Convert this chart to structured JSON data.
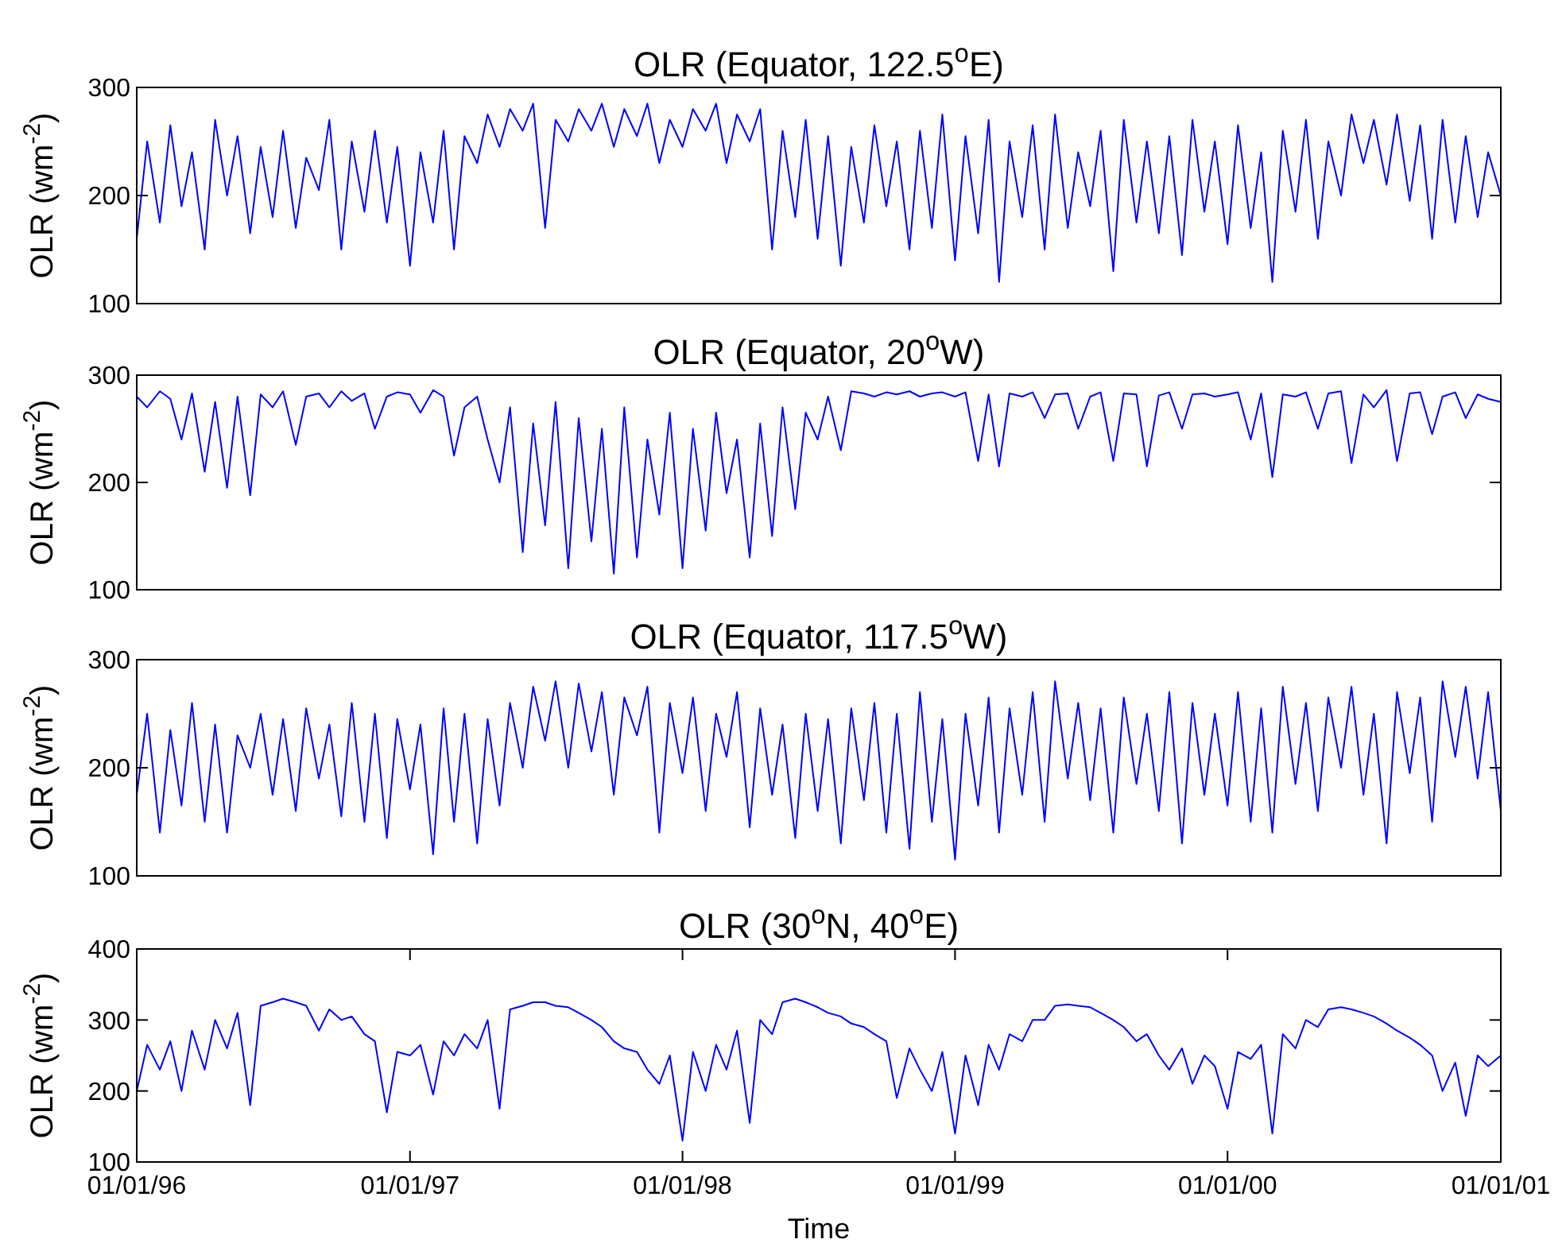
{
  "chart_data": [
    {
      "type": "line",
      "x": [
        "1996-01-01",
        "1996-01-15",
        "1996-02-01",
        "1996-02-15",
        "1996-03-01",
        "1996-03-15",
        "1996-04-01",
        "1996-04-15",
        "1996-05-01",
        "1996-05-15",
        "1996-06-01",
        "1996-06-15",
        "1996-07-01",
        "1996-07-15",
        "1996-08-01",
        "1996-08-15",
        "1996-09-01",
        "1996-09-15",
        "1996-10-01",
        "1996-10-15",
        "1996-11-01",
        "1996-11-15",
        "1996-12-01",
        "1996-12-15",
        "1997-01-01",
        "1997-01-15",
        "1997-02-01",
        "1997-02-15",
        "1997-03-01",
        "1997-03-15",
        "1997-04-01",
        "1997-04-15",
        "1997-05-01",
        "1997-05-15",
        "1997-06-01",
        "1997-06-15",
        "1997-07-01",
        "1997-07-15",
        "1997-08-01",
        "1997-08-15",
        "1997-09-01",
        "1997-09-15",
        "1997-10-01",
        "1997-10-15",
        "1997-11-01",
        "1997-11-15",
        "1997-12-01",
        "1997-12-15",
        "1998-01-01",
        "1998-01-15",
        "1998-02-01",
        "1998-02-15",
        "1998-03-01",
        "1998-03-15",
        "1998-04-01",
        "1998-04-15",
        "1998-05-01",
        "1998-05-15",
        "1998-06-01",
        "1998-06-15",
        "1998-07-01",
        "1998-07-15",
        "1998-08-01",
        "1998-08-15",
        "1998-09-01",
        "1998-09-15",
        "1998-10-01",
        "1998-10-15",
        "1998-11-01",
        "1998-11-15",
        "1998-12-01",
        "1998-12-15",
        "1999-01-01",
        "1999-01-15",
        "1999-02-01",
        "1999-02-15",
        "1999-03-01",
        "1999-03-15",
        "1999-04-01",
        "1999-04-15",
        "1999-05-01",
        "1999-05-15",
        "1999-06-01",
        "1999-06-15",
        "1999-07-01",
        "1999-07-15",
        "1999-08-01",
        "1999-08-15",
        "1999-09-01",
        "1999-09-15",
        "1999-10-01",
        "1999-10-15",
        "1999-11-01",
        "1999-11-15",
        "1999-12-01",
        "1999-12-15",
        "2000-01-01",
        "2000-01-15",
        "2000-02-01",
        "2000-02-15",
        "2000-03-01",
        "2000-03-15",
        "2000-04-01",
        "2000-04-15",
        "2000-05-01",
        "2000-05-15",
        "2000-06-01",
        "2000-06-15",
        "2000-07-01",
        "2000-07-15",
        "2000-08-01",
        "2000-08-15",
        "2000-09-01",
        "2000-09-15",
        "2000-10-01",
        "2000-10-15",
        "2000-11-01",
        "2000-11-15",
        "2000-12-01",
        "2000-12-15",
        "2001-01-01"
      ],
      "title": "OLR (Equator, 122.5$^{o}$E)",
      "ylabel": "OLR (wm$^{-2}$)",
      "xlim": [
        "1996-01-01",
        "2001-01-01"
      ],
      "ylim": [
        100,
        300
      ],
      "yticks": [
        100,
        200,
        300
      ],
      "tick_labels": "y",
      "series": [
        {
          "color": "#0000ff",
          "values": [
            160,
            250,
            175,
            265,
            190,
            240,
            150,
            270,
            200,
            255,
            165,
            245,
            180,
            260,
            170,
            235,
            205,
            270,
            150,
            250,
            185,
            260,
            175,
            245,
            135,
            240,
            175,
            260,
            150,
            255,
            230,
            275,
            245,
            280,
            260,
            285,
            170,
            270,
            250,
            280,
            260,
            285,
            245,
            280,
            255,
            285,
            230,
            270,
            245,
            280,
            260,
            285,
            230,
            275,
            250,
            280,
            150,
            260,
            180,
            270,
            160,
            255,
            135,
            245,
            175,
            265,
            190,
            250,
            150,
            260,
            170,
            275,
            140,
            255,
            165,
            270,
            120,
            250,
            180,
            265,
            150,
            275,
            170,
            240,
            190,
            260,
            130,
            270,
            175,
            250,
            165,
            255,
            145,
            270,
            185,
            250,
            155,
            265,
            170,
            240,
            120,
            260,
            185,
            270,
            160,
            250,
            200,
            275,
            230,
            270,
            210,
            275,
            195,
            265,
            160,
            270,
            175,
            255,
            180,
            240,
            200
          ]
        }
      ]
    },
    {
      "type": "line",
      "x": [
        "1996-01-01",
        "1996-01-15",
        "1996-02-01",
        "1996-02-15",
        "1996-03-01",
        "1996-03-15",
        "1996-04-01",
        "1996-04-15",
        "1996-05-01",
        "1996-05-15",
        "1996-06-01",
        "1996-06-15",
        "1996-07-01",
        "1996-07-15",
        "1996-08-01",
        "1996-08-15",
        "1996-09-01",
        "1996-09-15",
        "1996-10-01",
        "1996-10-15",
        "1996-11-01",
        "1996-11-15",
        "1996-12-01",
        "1996-12-15",
        "1997-01-01",
        "1997-01-15",
        "1997-02-01",
        "1997-02-15",
        "1997-03-01",
        "1997-03-15",
        "1997-04-01",
        "1997-04-15",
        "1997-05-01",
        "1997-05-15",
        "1997-06-01",
        "1997-06-15",
        "1997-07-01",
        "1997-07-15",
        "1997-08-01",
        "1997-08-15",
        "1997-09-01",
        "1997-09-15",
        "1997-10-01",
        "1997-10-15",
        "1997-11-01",
        "1997-11-15",
        "1997-12-01",
        "1997-12-15",
        "1998-01-01",
        "1998-01-15",
        "1998-02-01",
        "1998-02-15",
        "1998-03-01",
        "1998-03-15",
        "1998-04-01",
        "1998-04-15",
        "1998-05-01",
        "1998-05-15",
        "1998-06-01",
        "1998-06-15",
        "1998-07-01",
        "1998-07-15",
        "1998-08-01",
        "1998-08-15",
        "1998-09-01",
        "1998-09-15",
        "1998-10-01",
        "1998-10-15",
        "1998-11-01",
        "1998-11-15",
        "1998-12-01",
        "1998-12-15",
        "1999-01-01",
        "1999-01-15",
        "1999-02-01",
        "1999-02-15",
        "1999-03-01",
        "1999-03-15",
        "1999-04-01",
        "1999-04-15",
        "1999-05-01",
        "1999-05-15",
        "1999-06-01",
        "1999-06-15",
        "1999-07-01",
        "1999-07-15",
        "1999-08-01",
        "1999-08-15",
        "1999-09-01",
        "1999-09-15",
        "1999-10-01",
        "1999-10-15",
        "1999-11-01",
        "1999-11-15",
        "1999-12-01",
        "1999-12-15",
        "2000-01-01",
        "2000-01-15",
        "2000-02-01",
        "2000-02-15",
        "2000-03-01",
        "2000-03-15",
        "2000-04-01",
        "2000-04-15",
        "2000-05-01",
        "2000-05-15",
        "2000-06-01",
        "2000-06-15",
        "2000-07-01",
        "2000-07-15",
        "2000-08-01",
        "2000-08-15",
        "2000-09-01",
        "2000-09-15",
        "2000-10-01",
        "2000-10-15",
        "2000-11-01",
        "2000-11-15",
        "2000-12-01",
        "2000-12-15",
        "2001-01-01"
      ],
      "title": "OLR (Equator, 20$^{o}$W)",
      "ylabel": "OLR (wm$^{-2}$)",
      "xlim": [
        "1996-01-01",
        "2001-01-01"
      ],
      "ylim": [
        100,
        300
      ],
      "yticks": [
        100,
        200,
        300
      ],
      "tick_labels": "y",
      "series": [
        {
          "color": "#0000ff",
          "values": [
            280,
            270,
            285,
            278,
            240,
            283,
            210,
            275,
            195,
            280,
            188,
            282,
            270,
            285,
            235,
            280,
            283,
            270,
            285,
            276,
            283,
            250,
            280,
            284,
            282,
            265,
            286,
            280,
            225,
            270,
            280,
            240,
            200,
            270,
            135,
            255,
            160,
            275,
            120,
            260,
            145,
            250,
            115,
            270,
            130,
            240,
            170,
            265,
            120,
            250,
            155,
            265,
            190,
            240,
            130,
            255,
            150,
            270,
            175,
            265,
            240,
            280,
            230,
            285,
            283,
            280,
            284,
            282,
            285,
            280,
            283,
            284,
            280,
            284,
            220,
            282,
            215,
            283,
            280,
            284,
            260,
            282,
            283,
            250,
            280,
            284,
            220,
            283,
            282,
            215,
            281,
            284,
            250,
            282,
            283,
            280,
            282,
            284,
            240,
            283,
            205,
            282,
            280,
            284,
            250,
            283,
            285,
            218,
            282,
            270,
            286,
            220,
            283,
            284,
            245,
            280,
            284,
            260,
            282,
            278,
            275
          ]
        }
      ]
    },
    {
      "type": "line",
      "x": [
        "1996-01-01",
        "1996-01-15",
        "1996-02-01",
        "1996-02-15",
        "1996-03-01",
        "1996-03-15",
        "1996-04-01",
        "1996-04-15",
        "1996-05-01",
        "1996-05-15",
        "1996-06-01",
        "1996-06-15",
        "1996-07-01",
        "1996-07-15",
        "1996-08-01",
        "1996-08-15",
        "1996-09-01",
        "1996-09-15",
        "1996-10-01",
        "1996-10-15",
        "1996-11-01",
        "1996-11-15",
        "1996-12-01",
        "1996-12-15",
        "1997-01-01",
        "1997-01-15",
        "1997-02-01",
        "1997-02-15",
        "1997-03-01",
        "1997-03-15",
        "1997-04-01",
        "1997-04-15",
        "1997-05-01",
        "1997-05-15",
        "1997-06-01",
        "1997-06-15",
        "1997-07-01",
        "1997-07-15",
        "1997-08-01",
        "1997-08-15",
        "1997-09-01",
        "1997-09-15",
        "1997-10-01",
        "1997-10-15",
        "1997-11-01",
        "1997-11-15",
        "1997-12-01",
        "1997-12-15",
        "1998-01-01",
        "1998-01-15",
        "1998-02-01",
        "1998-02-15",
        "1998-03-01",
        "1998-03-15",
        "1998-04-01",
        "1998-04-15",
        "1998-05-01",
        "1998-05-15",
        "1998-06-01",
        "1998-06-15",
        "1998-07-01",
        "1998-07-15",
        "1998-08-01",
        "1998-08-15",
        "1998-09-01",
        "1998-09-15",
        "1998-10-01",
        "1998-10-15",
        "1998-11-01",
        "1998-11-15",
        "1998-12-01",
        "1998-12-15",
        "1999-01-01",
        "1999-01-15",
        "1999-02-01",
        "1999-02-15",
        "1999-03-01",
        "1999-03-15",
        "1999-04-01",
        "1999-04-15",
        "1999-05-01",
        "1999-05-15",
        "1999-06-01",
        "1999-06-15",
        "1999-07-01",
        "1999-07-15",
        "1999-08-01",
        "1999-08-15",
        "1999-09-01",
        "1999-09-15",
        "1999-10-01",
        "1999-10-15",
        "1999-11-01",
        "1999-11-15",
        "1999-12-01",
        "1999-12-15",
        "2000-01-01",
        "2000-01-15",
        "2000-02-01",
        "2000-02-15",
        "2000-03-01",
        "2000-03-15",
        "2000-04-01",
        "2000-04-15",
        "2000-05-01",
        "2000-05-15",
        "2000-06-01",
        "2000-06-15",
        "2000-07-01",
        "2000-07-15",
        "2000-08-01",
        "2000-08-15",
        "2000-09-01",
        "2000-09-15",
        "2000-10-01",
        "2000-10-15",
        "2000-11-01",
        "2000-11-15",
        "2000-12-01",
        "2000-12-15",
        "2001-01-01"
      ],
      "title": "OLR (Equator, 117.5$^{o}$W)",
      "ylabel": "OLR (wm$^{-2}$)",
      "xlim": [
        "1996-01-01",
        "2001-01-01"
      ],
      "ylim": [
        100,
        300
      ],
      "yticks": [
        100,
        200,
        300
      ],
      "tick_labels": "y",
      "series": [
        {
          "color": "#0000ff",
          "values": [
            175,
            250,
            140,
            235,
            165,
            260,
            150,
            240,
            140,
            230,
            200,
            250,
            175,
            245,
            160,
            255,
            190,
            240,
            155,
            260,
            150,
            250,
            135,
            245,
            180,
            240,
            120,
            255,
            150,
            250,
            130,
            245,
            165,
            260,
            200,
            275,
            225,
            280,
            200,
            278,
            215,
            270,
            175,
            265,
            230,
            275,
            140,
            260,
            195,
            265,
            160,
            250,
            210,
            270,
            145,
            255,
            175,
            240,
            135,
            250,
            160,
            245,
            130,
            255,
            170,
            260,
            140,
            250,
            125,
            270,
            150,
            245,
            115,
            250,
            165,
            265,
            140,
            255,
            175,
            270,
            150,
            280,
            190,
            260,
            170,
            255,
            140,
            265,
            185,
            250,
            160,
            270,
            130,
            260,
            175,
            250,
            165,
            270,
            150,
            255,
            140,
            275,
            185,
            260,
            160,
            265,
            200,
            275,
            175,
            250,
            130,
            270,
            195,
            265,
            150,
            280,
            210,
            275,
            190,
            270,
            160
          ]
        }
      ]
    },
    {
      "type": "line",
      "x": [
        "1996-01-01",
        "1996-01-15",
        "1996-02-01",
        "1996-02-15",
        "1996-03-01",
        "1996-03-15",
        "1996-04-01",
        "1996-04-15",
        "1996-05-01",
        "1996-05-15",
        "1996-06-01",
        "1996-06-15",
        "1996-07-01",
        "1996-07-15",
        "1996-08-01",
        "1996-08-15",
        "1996-09-01",
        "1996-09-15",
        "1996-10-01",
        "1996-10-15",
        "1996-11-01",
        "1996-11-15",
        "1996-12-01",
        "1996-12-15",
        "1997-01-01",
        "1997-01-15",
        "1997-02-01",
        "1997-02-15",
        "1997-03-01",
        "1997-03-15",
        "1997-04-01",
        "1997-04-15",
        "1997-05-01",
        "1997-05-15",
        "1997-06-01",
        "1997-06-15",
        "1997-07-01",
        "1997-07-15",
        "1997-08-01",
        "1997-08-15",
        "1997-09-01",
        "1997-09-15",
        "1997-10-01",
        "1997-10-15",
        "1997-11-01",
        "1997-11-15",
        "1997-12-01",
        "1997-12-15",
        "1998-01-01",
        "1998-01-15",
        "1998-02-01",
        "1998-02-15",
        "1998-03-01",
        "1998-03-15",
        "1998-04-01",
        "1998-04-15",
        "1998-05-01",
        "1998-05-15",
        "1998-06-01",
        "1998-06-15",
        "1998-07-01",
        "1998-07-15",
        "1998-08-01",
        "1998-08-15",
        "1998-09-01",
        "1998-09-15",
        "1998-10-01",
        "1998-10-15",
        "1998-11-01",
        "1998-11-15",
        "1998-12-01",
        "1998-12-15",
        "1999-01-01",
        "1999-01-15",
        "1999-02-01",
        "1999-02-15",
        "1999-03-01",
        "1999-03-15",
        "1999-04-01",
        "1999-04-15",
        "1999-05-01",
        "1999-05-15",
        "1999-06-01",
        "1999-06-15",
        "1999-07-01",
        "1999-07-15",
        "1999-08-01",
        "1999-08-15",
        "1999-09-01",
        "1999-09-15",
        "1999-10-01",
        "1999-10-15",
        "1999-11-01",
        "1999-11-15",
        "1999-12-01",
        "1999-12-15",
        "2000-01-01",
        "2000-01-15",
        "2000-02-01",
        "2000-02-15",
        "2000-03-01",
        "2000-03-15",
        "2000-04-01",
        "2000-04-15",
        "2000-05-01",
        "2000-05-15",
        "2000-06-01",
        "2000-06-15",
        "2000-07-01",
        "2000-07-15",
        "2000-08-01",
        "2000-08-15",
        "2000-09-01",
        "2000-09-15",
        "2000-10-01",
        "2000-10-15",
        "2000-11-01",
        "2000-11-15",
        "2000-12-01",
        "2000-12-15",
        "2001-01-01"
      ],
      "title": "OLR (30$^{o}$N, 40$^{o}$E)",
      "ylabel": "OLR (wm$^{-2}$)",
      "xlabel": "Time",
      "xlim": [
        "1996-01-01",
        "2001-01-01"
      ],
      "ylim": [
        100,
        400
      ],
      "yticks": [
        100,
        200,
        300,
        400
      ],
      "xticks": [
        {
          "value": "1996-01-01",
          "label": "01/01/96"
        },
        {
          "value": "1997-01-01",
          "label": "01/01/97"
        },
        {
          "value": "1998-01-01",
          "label": "01/01/98"
        },
        {
          "value": "1999-01-01",
          "label": "01/01/99"
        },
        {
          "value": "2000-01-01",
          "label": "01/01/00"
        },
        {
          "value": "2001-01-01",
          "label": "01/01/01"
        }
      ],
      "series": [
        {
          "color": "#0000ff",
          "values": [
            200,
            265,
            230,
            270,
            200,
            285,
            230,
            300,
            260,
            310,
            180,
            320,
            325,
            330,
            325,
            320,
            285,
            315,
            300,
            305,
            280,
            270,
            170,
            255,
            250,
            265,
            195,
            270,
            250,
            280,
            260,
            300,
            175,
            315,
            320,
            325,
            325,
            320,
            318,
            310,
            300,
            290,
            270,
            260,
            255,
            230,
            210,
            250,
            130,
            255,
            200,
            265,
            230,
            285,
            155,
            300,
            280,
            325,
            330,
            325,
            318,
            310,
            305,
            295,
            290,
            280,
            270,
            190,
            260,
            230,
            200,
            255,
            140,
            250,
            180,
            265,
            230,
            280,
            270,
            300,
            300,
            320,
            322,
            320,
            318,
            310,
            300,
            290,
            270,
            280,
            250,
            230,
            260,
            210,
            250,
            235,
            175,
            255,
            245,
            265,
            140,
            280,
            260,
            300,
            290,
            315,
            318,
            315,
            310,
            305,
            295,
            285,
            275,
            265,
            250,
            200,
            240,
            165,
            250,
            235,
            250
          ]
        }
      ]
    }
  ]
}
